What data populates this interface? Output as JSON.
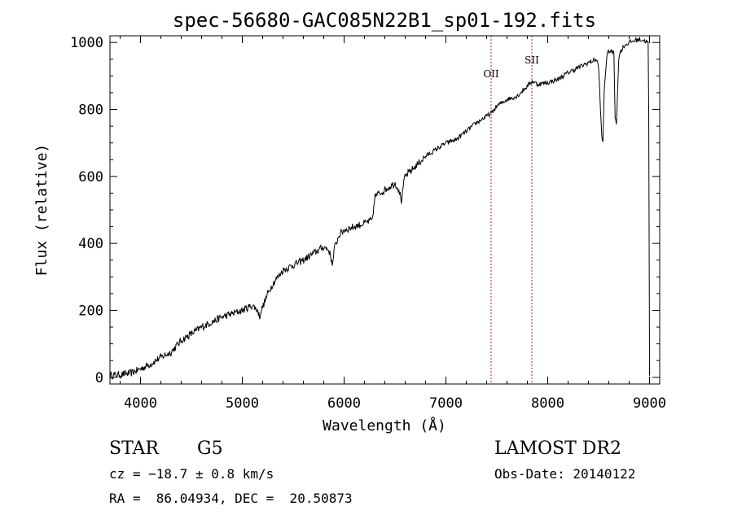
{
  "chart_data": {
    "type": "line",
    "title": "spec-56680-GAC085N22B1_sp01-192.fits",
    "xlabel": "Wavelength (Å)",
    "ylabel": "Flux (relative)",
    "xlim": [
      3700,
      9100
    ],
    "ylim": [
      -20,
      1020
    ],
    "x_ticks": [
      4000,
      5000,
      6000,
      7000,
      8000,
      9000
    ],
    "y_ticks": [
      0,
      200,
      400,
      600,
      800,
      1000
    ],
    "x_tick_labels": [
      "4000",
      "5000",
      "6000",
      "7000",
      "8000",
      "9000"
    ],
    "y_tick_labels": [
      "0",
      "200",
      "400",
      "600",
      "800",
      "1000"
    ],
    "grid": false,
    "line_color": "#000000",
    "marker_color": "#b02020",
    "series": [
      {
        "x": [
          3700,
          3800,
          3900,
          4000,
          4100,
          4200,
          4300,
          4400,
          4500,
          4600,
          4700,
          4800,
          4900,
          5000,
          5100,
          5150,
          5170,
          5180,
          5200,
          5250,
          5300,
          5400,
          5500,
          5600,
          5700,
          5800,
          5850,
          5880,
          5890,
          5900,
          5950,
          6000,
          6100,
          6200,
          6280,
          6300,
          6400,
          6500,
          6540,
          6563,
          6580,
          6600,
          6700,
          6800,
          6900,
          7000,
          7100,
          7200,
          7300,
          7400,
          7450,
          7500,
          7600,
          7700,
          7800,
          7850,
          7900,
          8000,
          8100,
          8200,
          8300,
          8400,
          8480,
          8500,
          8530,
          8542,
          8555,
          8580,
          8600,
          8650,
          8662,
          8675,
          8700,
          8750,
          8800,
          8850,
          8900,
          8950,
          8990,
          9000
        ],
        "y": [
          5,
          8,
          12,
          25,
          40,
          60,
          75,
          110,
          130,
          150,
          165,
          180,
          190,
          200,
          215,
          200,
          180,
          195,
          210,
          250,
          280,
          320,
          335,
          350,
          370,
          390,
          380,
          345,
          340,
          380,
          425,
          440,
          450,
          460,
          470,
          540,
          560,
          580,
          560,
          525,
          570,
          600,
          630,
          660,
          680,
          700,
          710,
          735,
          760,
          780,
          790,
          810,
          830,
          840,
          870,
          885,
          875,
          880,
          890,
          910,
          925,
          940,
          950,
          925,
          720,
          700,
          860,
          960,
          975,
          970,
          780,
          760,
          965,
          990,
          1000,
          1005,
          1010,
          1005,
          1000,
          5
        ]
      }
    ],
    "annotations": [
      {
        "label": "OII",
        "x": 7444
      },
      {
        "label": "SII",
        "x": 7844
      }
    ]
  },
  "info": {
    "object_class": "STAR",
    "subclass": "G5",
    "cz": "cz = −18.7 ± 0.8 km/s",
    "coords": "RA =  86.04934, DEC =  20.50873",
    "survey": "LAMOST DR2",
    "obs_date": "Obs-Date: 20140122"
  }
}
